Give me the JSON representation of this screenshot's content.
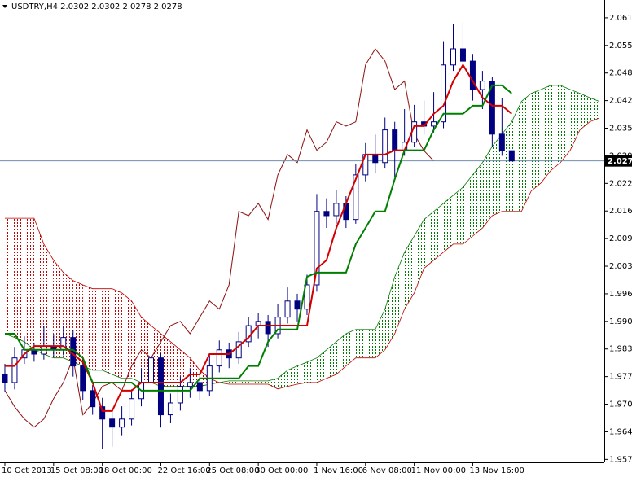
{
  "chart_data": {
    "type": "candlestick",
    "title": "USDTRY,H4 2.0302 2.0302 2.0278 2.0278",
    "open": [
      1.9775,
      1.9756,
      1.9814,
      1.9833,
      1.9823,
      1.9842,
      1.9833,
      1.9862,
      1.9795,
      1.9737,
      1.9699,
      1.967,
      1.9651,
      1.967,
      1.9718,
      1.9756,
      1.9814,
      1.968,
      1.9708,
      1.9747,
      1.9756,
      1.9737,
      1.9795,
      1.9833,
      1.9814,
      1.9852,
      1.989,
      1.99,
      1.9871,
      1.991,
      1.9948,
      1.9929,
      1.9986,
      2.0159,
      2.0149,
      2.0178,
      2.014,
      2.0245,
      2.0293,
      2.0274,
      2.0351,
      2.0303,
      2.0322,
      2.037,
      2.036,
      2.037,
      2.0504,
      2.0542,
      2.0513,
      2.0446,
      2.0466,
      2.0341,
      2.0302
    ],
    "high": [
      1.98,
      1.984,
      1.9865,
      1.985,
      1.989,
      1.987,
      1.989,
      1.988,
      1.981,
      1.975,
      1.972,
      1.969,
      1.97,
      1.974,
      1.979,
      1.986,
      1.9825,
      1.973,
      1.977,
      1.979,
      1.978,
      1.982,
      1.9855,
      1.985,
      1.9875,
      1.991,
      1.992,
      1.9915,
      1.994,
      1.998,
      1.9965,
      2.001,
      2.02,
      2.019,
      2.021,
      2.0195,
      2.027,
      2.032,
      2.034,
      2.038,
      2.037,
      2.04,
      2.041,
      2.042,
      2.044,
      2.056,
      2.06,
      2.0605,
      2.053,
      2.049,
      2.0475,
      2.0425,
      2.0302
    ],
    "low": [
      1.9735,
      1.974,
      1.98,
      1.9805,
      1.981,
      1.9815,
      1.982,
      1.977,
      1.9715,
      1.968,
      1.96,
      1.9605,
      1.963,
      1.9655,
      1.97,
      1.974,
      1.965,
      1.966,
      1.969,
      1.972,
      1.9715,
      1.9725,
      1.978,
      1.979,
      1.98,
      1.984,
      1.986,
      1.984,
      1.986,
      1.9895,
      1.99,
      1.9915,
      1.997,
      2.012,
      2.013,
      2.012,
      2.013,
      2.023,
      2.025,
      2.026,
      2.024,
      2.029,
      2.031,
      2.034,
      2.0345,
      2.0355,
      2.049,
      2.048,
      2.042,
      2.04,
      2.031,
      2.029,
      2.0278
    ],
    "close": [
      1.9756,
      1.9814,
      1.9833,
      1.9823,
      1.9842,
      1.9833,
      1.9862,
      1.9795,
      1.9737,
      1.9699,
      1.967,
      1.9651,
      1.967,
      1.9718,
      1.9756,
      1.9814,
      1.968,
      1.9708,
      1.9747,
      1.9756,
      1.9737,
      1.9795,
      1.9833,
      1.9814,
      1.9852,
      1.989,
      1.99,
      1.9871,
      1.991,
      1.9948,
      1.9929,
      1.9986,
      2.0159,
      2.0149,
      2.0178,
      2.014,
      2.0245,
      2.0293,
      2.0274,
      2.0351,
      2.0303,
      2.0322,
      2.037,
      2.036,
      2.037,
      2.0504,
      2.0542,
      2.0513,
      2.0446,
      2.0466,
      2.0341,
      2.0302,
      2.0278
    ],
    "candle_color": "#000080",
    "series": [
      {
        "color": "#d40000",
        "values": [
          1.9795,
          1.9795,
          1.9823,
          1.9842,
          1.9842,
          1.9842,
          1.9842,
          1.9823,
          1.9804,
          1.9756,
          1.9689,
          1.9689,
          1.9737,
          1.9737,
          1.9756,
          1.9756,
          1.9756,
          1.9756,
          1.9756,
          1.9775,
          1.9775,
          1.9823,
          1.9823,
          1.9823,
          1.9842,
          1.9862,
          1.989,
          1.989,
          1.989,
          1.989,
          1.989,
          1.989,
          2.0025,
          2.0044,
          2.012,
          2.0178,
          2.0235,
          2.0293,
          2.0293,
          2.0293,
          2.0303,
          2.0303,
          2.036,
          2.036,
          2.0389,
          2.0408,
          2.0466,
          2.0504,
          2.0466,
          2.0427,
          2.0408,
          2.0408,
          2.0389
        ]
      },
      {
        "color": "#008000",
        "values": [
          1.9871,
          1.9871,
          1.9833,
          1.9833,
          1.9833,
          1.9833,
          1.9833,
          1.9833,
          1.9814,
          1.9756,
          1.9756,
          1.9756,
          1.9756,
          1.9756,
          1.9737,
          1.9737,
          1.9737,
          1.9737,
          1.9737,
          1.9737,
          1.9766,
          1.9766,
          1.9766,
          1.9766,
          1.9766,
          1.9795,
          1.9795,
          1.9852,
          1.9881,
          1.9881,
          1.9881,
          2.0005,
          2.0015,
          2.0015,
          2.0015,
          2.0015,
          2.0082,
          2.012,
          2.0159,
          2.0159,
          2.0235,
          2.0303,
          2.0303,
          2.0303,
          2.0351,
          2.0389,
          2.0389,
          2.0389,
          2.0408,
          2.0408,
          2.0456,
          2.0456,
          2.0437
        ]
      }
    ],
    "lagging": {
      "color": "#8b1010",
      "values": [
        1.9737,
        1.9699,
        1.967,
        1.9651,
        1.967,
        1.9718,
        1.9756,
        1.9814,
        1.968,
        1.9708,
        1.9747,
        1.9756,
        1.9737,
        1.9795,
        1.9833,
        1.9814,
        1.9852,
        1.989,
        1.99,
        1.9871,
        1.991,
        1.9948,
        1.9929,
        1.9986,
        2.0159,
        2.0149,
        2.0178,
        2.014,
        2.0245,
        2.0293,
        2.0274,
        2.0351,
        2.0303,
        2.0322,
        2.037,
        2.036,
        2.037,
        2.0504,
        2.0542,
        2.0513,
        2.0446,
        2.0466,
        2.0341,
        2.0302,
        2.0278
      ]
    },
    "cloud": {
      "span_a": [
        1.9871,
        1.9862,
        1.9852,
        1.9833,
        1.9823,
        1.9814,
        1.9814,
        1.9804,
        1.9795,
        1.9785,
        1.9785,
        1.9775,
        1.9766,
        1.9766,
        1.9756,
        1.9756,
        1.9747,
        1.9747,
        1.9747,
        1.9747,
        1.9747,
        1.9752,
        1.9756,
        1.976,
        1.976,
        1.976,
        1.976,
        1.976,
        1.9766,
        1.9785,
        1.9795,
        1.9804,
        1.9814,
        1.9833,
        1.9852,
        1.9871,
        1.9881,
        1.9881,
        1.9881,
        1.9929,
        2.0005,
        2.0063,
        2.0101,
        2.014,
        2.0159,
        2.0178,
        2.0197,
        2.0216,
        2.0245,
        2.0274,
        2.0312,
        2.0341,
        2.037,
        2.0418,
        2.0437,
        2.0446,
        2.0456,
        2.0456,
        2.0446,
        2.0437,
        2.0427,
        2.0418
      ],
      "span_b": [
        2.0143,
        2.0143,
        2.0143,
        2.0143,
        2.0082,
        2.0044,
        2.0015,
        1.9996,
        1.9986,
        1.9977,
        1.9977,
        1.9977,
        1.9967,
        1.9948,
        1.991,
        1.989,
        1.9871,
        1.9852,
        1.9833,
        1.9814,
        1.9785,
        1.9766,
        1.9756,
        1.9752,
        1.9752,
        1.9752,
        1.9752,
        1.9752,
        1.9741,
        1.9747,
        1.9752,
        1.9756,
        1.9756,
        1.9766,
        1.9775,
        1.9795,
        1.9814,
        1.9814,
        1.9814,
        1.9833,
        1.9871,
        1.9929,
        1.9967,
        2.0025,
        2.0044,
        2.0063,
        2.0082,
        2.0082,
        2.0101,
        2.012,
        2.0149,
        2.0159,
        2.0159,
        2.0159,
        2.0207,
        2.0226,
        2.0255,
        2.0274,
        2.0303,
        2.0351,
        2.037,
        2.0379
      ],
      "bull_color": "#007a00",
      "bear_color": "#c00000"
    },
    "current_price": 2.0278,
    "current_price_color": "#6f8fb0",
    "ylim": [
      1.9568,
      2.0657
    ],
    "yticks": [
      2.0615,
      {
        "value": 2.055,
        "label": "2.0550"
      },
      2.0485,
      {
        "value": 2.042,
        "label": "2.0420"
      },
      2.0355,
      {
        "value": 2.029,
        "label": "2.0290"
      },
      2.0225,
      {
        "value": 2.016,
        "label": "2.0160"
      },
      2.0095,
      {
        "value": 2.003,
        "label": "2.0030"
      },
      1.9965,
      {
        "value": 1.99,
        "label": "1.9900"
      },
      1.9835,
      {
        "value": 1.977,
        "label": "1.9770"
      },
      1.9705,
      {
        "value": 1.964,
        "label": "1.9640"
      },
      1.9575
    ],
    "xlim": [
      -0.5,
      61.5
    ],
    "xticks": [
      {
        "value": 0,
        "label": "10 Oct 2013"
      },
      {
        "value": 5,
        "label": "15 Oct 08:00"
      },
      {
        "value": 10,
        "label": "18 Oct 00:00"
      },
      {
        "value": 16,
        "label": "22 Oct 16:00"
      },
      {
        "value": 21,
        "label": "25 Oct 08:00"
      },
      {
        "value": 26,
        "label": "30 Oct 00:00"
      },
      {
        "value": 32,
        "label": "1 Nov 16:00"
      },
      {
        "value": 37,
        "label": "6 Nov 08:00"
      },
      {
        "value": 42,
        "label": "11 Nov 00:00"
      },
      {
        "value": 48,
        "label": "13 Nov 16:00"
      }
    ]
  }
}
